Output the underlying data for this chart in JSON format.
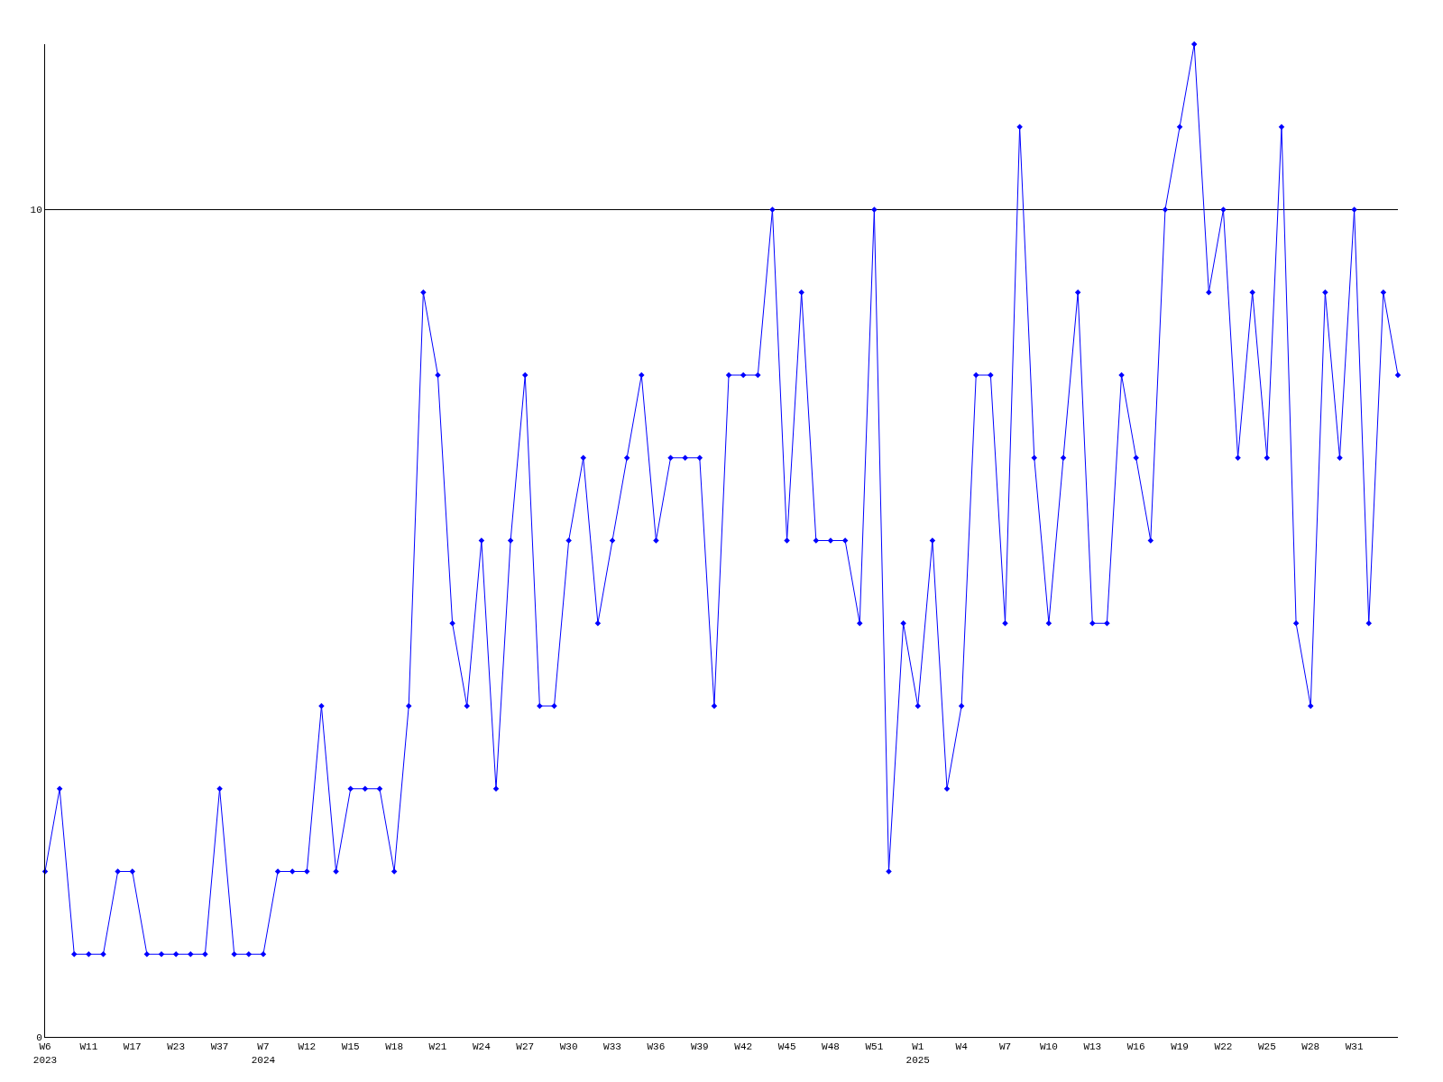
{
  "chart_data": {
    "type": "line",
    "categories": [
      "W6\n2023",
      null,
      null,
      "W11",
      null,
      null,
      "W17",
      null,
      null,
      "W23",
      null,
      null,
      "W37",
      null,
      null,
      "W7\n2024",
      null,
      null,
      "W12",
      null,
      null,
      "W15",
      null,
      null,
      "W18",
      null,
      null,
      "W21",
      null,
      null,
      "W24",
      null,
      null,
      "W27",
      null,
      null,
      "W30",
      null,
      null,
      "W33",
      null,
      null,
      "W36",
      null,
      null,
      "W39",
      null,
      null,
      "W42",
      null,
      null,
      "W45",
      null,
      null,
      "W48",
      null,
      null,
      "W51",
      null,
      null,
      "W1\n2025",
      null,
      null,
      "W4",
      null,
      null,
      "W7",
      null,
      null,
      "W10",
      null,
      null,
      "W13",
      null,
      null,
      "W16",
      null,
      null,
      "W19",
      null,
      null,
      "W22",
      null,
      null,
      "W25",
      null,
      null,
      "W28",
      null,
      null,
      "W31",
      null,
      null,
      null
    ],
    "series": [
      {
        "color": "#0000ff",
        "values": [
          2,
          3,
          1,
          1,
          1,
          2,
          2,
          1,
          1,
          1,
          1,
          1,
          3,
          1,
          1,
          1,
          2,
          2,
          2,
          4,
          2,
          3,
          3,
          3,
          2,
          4,
          9,
          8,
          5,
          4,
          6,
          3,
          6,
          8,
          4,
          4,
          6,
          7,
          5,
          6,
          7,
          8,
          6,
          7,
          7,
          7,
          4,
          8,
          8,
          8,
          10,
          6,
          9,
          6,
          6,
          6,
          5,
          10,
          2,
          5,
          4,
          6,
          3,
          4,
          8,
          8,
          5,
          11,
          7,
          5,
          7,
          9,
          5,
          5,
          8,
          7,
          6,
          10,
          11,
          12,
          9,
          10,
          7,
          9,
          7,
          11,
          5,
          4,
          9,
          7,
          10,
          5,
          9,
          8
        ]
      }
    ],
    "ylim": [
      0,
      12
    ],
    "yticks": [
      0,
      10
    ],
    "grid": "y",
    "marker": "diamond",
    "line_style": "solid"
  }
}
